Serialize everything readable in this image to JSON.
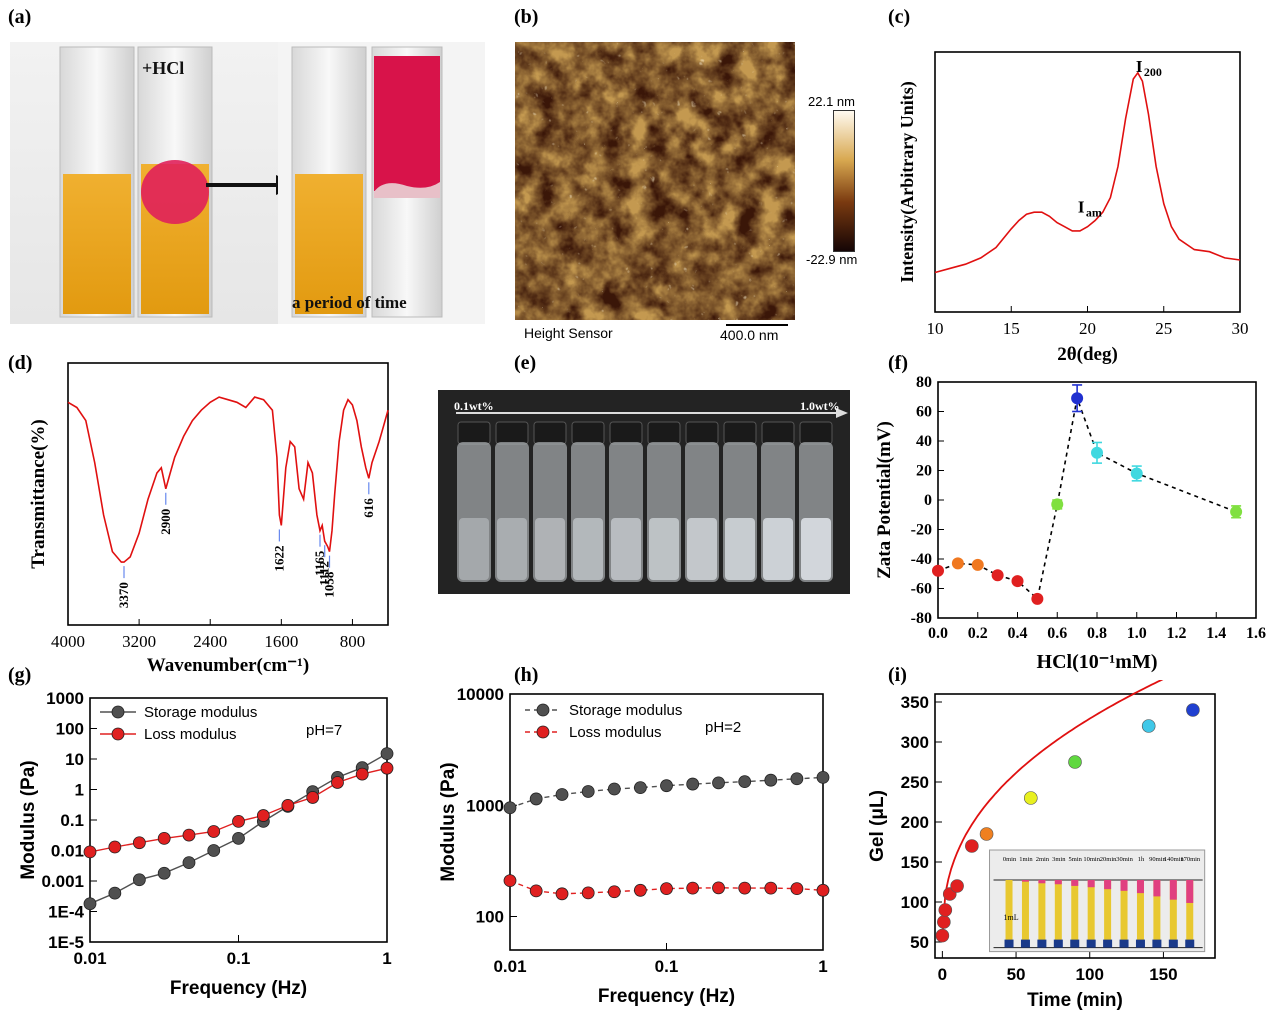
{
  "figure": {
    "panel_labels": [
      "(a)",
      "(b)",
      "(c)",
      "(d)",
      "(e)",
      "(f)",
      "(g)",
      "(h)",
      "(i)"
    ]
  },
  "panel_a": {
    "label_hcl": "+HCl",
    "caption": "a period of time",
    "colors": {
      "solution": "#e8a21a",
      "gel": "#d8134a"
    }
  },
  "panel_b": {
    "colorbar_max": "22.1 nm",
    "colorbar_min": "-22.9 nm",
    "sensor_label": "Height Sensor",
    "scale_bar": "400.0 nm"
  },
  "panel_e": {
    "left_label": "0.1wt%",
    "right_label": "1.0wt%"
  },
  "panel_i_inset": {
    "times": [
      "0min",
      "1min",
      "2min",
      "3min",
      "5min",
      "10min",
      "20min",
      "30min",
      "1h",
      "90min",
      "140min",
      "170min"
    ],
    "volume_label": "1mL"
  },
  "chart_data": [
    {
      "id": "c",
      "type": "line",
      "xlabel": "2θ(deg)",
      "ylabel": "Intensity(Arbitrary Units)",
      "xlim": [
        10,
        30
      ],
      "xticks": [
        "10",
        "15",
        "20",
        "25",
        "30"
      ],
      "annotations": [
        {
          "text": "I",
          "sub": "200",
          "x": 23.3
        },
        {
          "text": "I",
          "sub": "am",
          "x": 19.5
        }
      ],
      "series": [
        {
          "color": "#e01010",
          "x": [
            10,
            11,
            12,
            13,
            14,
            15,
            15.5,
            16,
            16.5,
            17,
            17.5,
            18,
            18.5,
            19,
            19.5,
            20,
            20.5,
            21,
            21.5,
            22,
            22.5,
            23,
            23.3,
            23.6,
            24,
            24.5,
            25,
            25.5,
            26,
            27,
            28,
            29,
            30
          ],
          "y": [
            0.04,
            0.06,
            0.08,
            0.11,
            0.16,
            0.25,
            0.29,
            0.32,
            0.33,
            0.33,
            0.31,
            0.28,
            0.26,
            0.24,
            0.24,
            0.26,
            0.29,
            0.33,
            0.4,
            0.55,
            0.78,
            0.97,
            1.0,
            0.96,
            0.8,
            0.55,
            0.37,
            0.26,
            0.2,
            0.15,
            0.14,
            0.11,
            0.1
          ]
        }
      ]
    },
    {
      "id": "d",
      "type": "line",
      "xlabel": "Wavenumber(cm⁻¹)",
      "ylabel": "Transmittance(%)",
      "xlim": [
        4000,
        400
      ],
      "xticks": [
        "4000",
        "3200",
        "2400",
        "1600",
        "800"
      ],
      "peaks": [
        "3370",
        "2900",
        "1622",
        "1165",
        "1112",
        "1058",
        "616"
      ],
      "series": [
        {
          "color": "#e01010",
          "x": [
            4000,
            3900,
            3800,
            3700,
            3600,
            3500,
            3400,
            3370,
            3300,
            3200,
            3100,
            3000,
            2950,
            2900,
            2850,
            2800,
            2700,
            2600,
            2500,
            2400,
            2300,
            2200,
            2100,
            2000,
            1900,
            1800,
            1700,
            1650,
            1622,
            1600,
            1550,
            1500,
            1450,
            1400,
            1350,
            1300,
            1250,
            1200,
            1165,
            1140,
            1112,
            1080,
            1058,
            1030,
            1000,
            950,
            900,
            850,
            800,
            750,
            700,
            650,
            616,
            580,
            500,
            450,
            400
          ],
          "y": [
            0.85,
            0.83,
            0.78,
            0.62,
            0.42,
            0.28,
            0.24,
            0.24,
            0.26,
            0.35,
            0.48,
            0.58,
            0.6,
            0.52,
            0.58,
            0.64,
            0.72,
            0.78,
            0.82,
            0.85,
            0.87,
            0.86,
            0.85,
            0.83,
            0.87,
            0.86,
            0.82,
            0.64,
            0.42,
            0.38,
            0.6,
            0.7,
            0.68,
            0.52,
            0.48,
            0.62,
            0.58,
            0.42,
            0.36,
            0.38,
            0.32,
            0.3,
            0.28,
            0.36,
            0.5,
            0.7,
            0.82,
            0.86,
            0.84,
            0.78,
            0.68,
            0.6,
            0.56,
            0.62,
            0.7,
            0.76,
            0.82
          ]
        }
      ]
    },
    {
      "id": "f",
      "type": "scatter",
      "xlabel": "HCl(10⁻¹mM)",
      "ylabel": "Zata Potential(mV)",
      "xlim": [
        0.0,
        1.6
      ],
      "ylim": [
        -80,
        80
      ],
      "xticks": [
        "0.0",
        "0.2",
        "0.4",
        "0.6",
        "0.8",
        "1.0",
        "1.2",
        "1.4",
        "1.6"
      ],
      "yticks": [
        "-80",
        "-60",
        "-40",
        "-20",
        "0",
        "20",
        "40",
        "60",
        "80"
      ],
      "points": [
        {
          "x": 0.0,
          "y": -48,
          "err": 0,
          "color": "#e02020"
        },
        {
          "x": 0.1,
          "y": -43,
          "err": 0,
          "color": "#f07820"
        },
        {
          "x": 0.2,
          "y": -44,
          "err": 0,
          "color": "#f07820"
        },
        {
          "x": 0.3,
          "y": -51,
          "err": 0,
          "color": "#e02020"
        },
        {
          "x": 0.4,
          "y": -55,
          "err": 0,
          "color": "#e02020"
        },
        {
          "x": 0.5,
          "y": -67,
          "err": 0,
          "color": "#e02020"
        },
        {
          "x": 0.6,
          "y": -3,
          "err": 3,
          "color": "#80e040"
        },
        {
          "x": 0.7,
          "y": 69,
          "err": 9,
          "color": "#2030d0"
        },
        {
          "x": 0.8,
          "y": 32,
          "err": 7,
          "color": "#40d8e0"
        },
        {
          "x": 1.0,
          "y": 18,
          "err": 5,
          "color": "#40d8e0"
        },
        {
          "x": 1.5,
          "y": -8,
          "err": 4,
          "color": "#80e040"
        }
      ]
    },
    {
      "id": "g",
      "type": "line",
      "log_x": true,
      "log_y": true,
      "xlabel": "Frequency (Hz)",
      "ylabel": "Modulus (Pa)",
      "xlim": [
        0.01,
        1
      ],
      "ylim": [
        1e-05,
        1000
      ],
      "xticks": [
        "0.01",
        "0.1",
        "1"
      ],
      "yticks": [
        "1E-5",
        "1E-4",
        "0.001",
        "0.01",
        "0.1",
        "1",
        "10",
        "100",
        "1000"
      ],
      "annotation": "pH=7",
      "series": [
        {
          "name": "Storage modulus",
          "color": "#505050",
          "x": [
            0.01,
            0.0147,
            0.0215,
            0.0316,
            0.0464,
            0.0681,
            0.1,
            0.147,
            0.215,
            0.316,
            0.464,
            0.681,
            1
          ],
          "y": [
            0.00018,
            0.0004,
            0.0011,
            0.0018,
            0.004,
            0.01,
            0.025,
            0.09,
            0.28,
            0.85,
            2.5,
            5.2,
            15
          ]
        },
        {
          "name": "Loss modulus",
          "color": "#e02020",
          "x": [
            0.01,
            0.0147,
            0.0215,
            0.0316,
            0.0464,
            0.0681,
            0.1,
            0.147,
            0.215,
            0.316,
            0.464,
            0.681,
            1
          ],
          "y": [
            0.009,
            0.013,
            0.018,
            0.025,
            0.032,
            0.042,
            0.09,
            0.14,
            0.3,
            0.55,
            1.7,
            3.2,
            5
          ]
        }
      ]
    },
    {
      "id": "h",
      "type": "line",
      "log_x": true,
      "log_y": true,
      "xlabel": "Frequency (Hz)",
      "ylabel": "Modulus (Pa)",
      "xlim": [
        0.01,
        1
      ],
      "ylim": [
        50,
        10000
      ],
      "xticks": [
        "0.01",
        "0.1",
        "1"
      ],
      "yticks": [
        "100",
        "1000",
        "10000"
      ],
      "annotation": "pH=2",
      "series": [
        {
          "name": "Storage modulus",
          "color": "#505050",
          "x": [
            0.01,
            0.0147,
            0.0215,
            0.0316,
            0.0464,
            0.0681,
            0.1,
            0.147,
            0.215,
            0.316,
            0.464,
            0.681,
            1
          ],
          "y": [
            950,
            1140,
            1250,
            1330,
            1400,
            1440,
            1500,
            1550,
            1590,
            1630,
            1680,
            1730,
            1780
          ]
        },
        {
          "name": "Loss modulus",
          "color": "#e02020",
          "x": [
            0.01,
            0.0147,
            0.0215,
            0.0316,
            0.0464,
            0.0681,
            0.1,
            0.147,
            0.215,
            0.316,
            0.464,
            0.681,
            1
          ],
          "y": [
            210,
            170,
            160,
            163,
            167,
            172,
            178,
            180,
            181,
            180,
            180,
            178,
            172
          ]
        }
      ]
    },
    {
      "id": "i",
      "type": "scatter",
      "xlabel": "Time (min)",
      "ylabel": "Gel (μL)",
      "xlim": [
        -5,
        185
      ],
      "ylim": [
        30,
        360
      ],
      "xticks": [
        "0",
        "50",
        "100",
        "150"
      ],
      "yticks": [
        "50",
        "100",
        "150",
        "200",
        "250",
        "300",
        "350"
      ],
      "points": [
        {
          "x": 0,
          "y": 58,
          "color": "#e02020"
        },
        {
          "x": 1,
          "y": 75,
          "color": "#e02020"
        },
        {
          "x": 2,
          "y": 90,
          "color": "#e02020"
        },
        {
          "x": 5,
          "y": 110,
          "color": "#e02020"
        },
        {
          "x": 10,
          "y": 120,
          "color": "#e02020"
        },
        {
          "x": 20,
          "y": 170,
          "color": "#e02020"
        },
        {
          "x": 30,
          "y": 185,
          "color": "#f08020"
        },
        {
          "x": 60,
          "y": 230,
          "color": "#e8f020"
        },
        {
          "x": 90,
          "y": 275,
          "color": "#60d840"
        },
        {
          "x": 140,
          "y": 320,
          "color": "#40c8e8"
        },
        {
          "x": 170,
          "y": 340,
          "color": "#2040d0"
        }
      ]
    }
  ]
}
